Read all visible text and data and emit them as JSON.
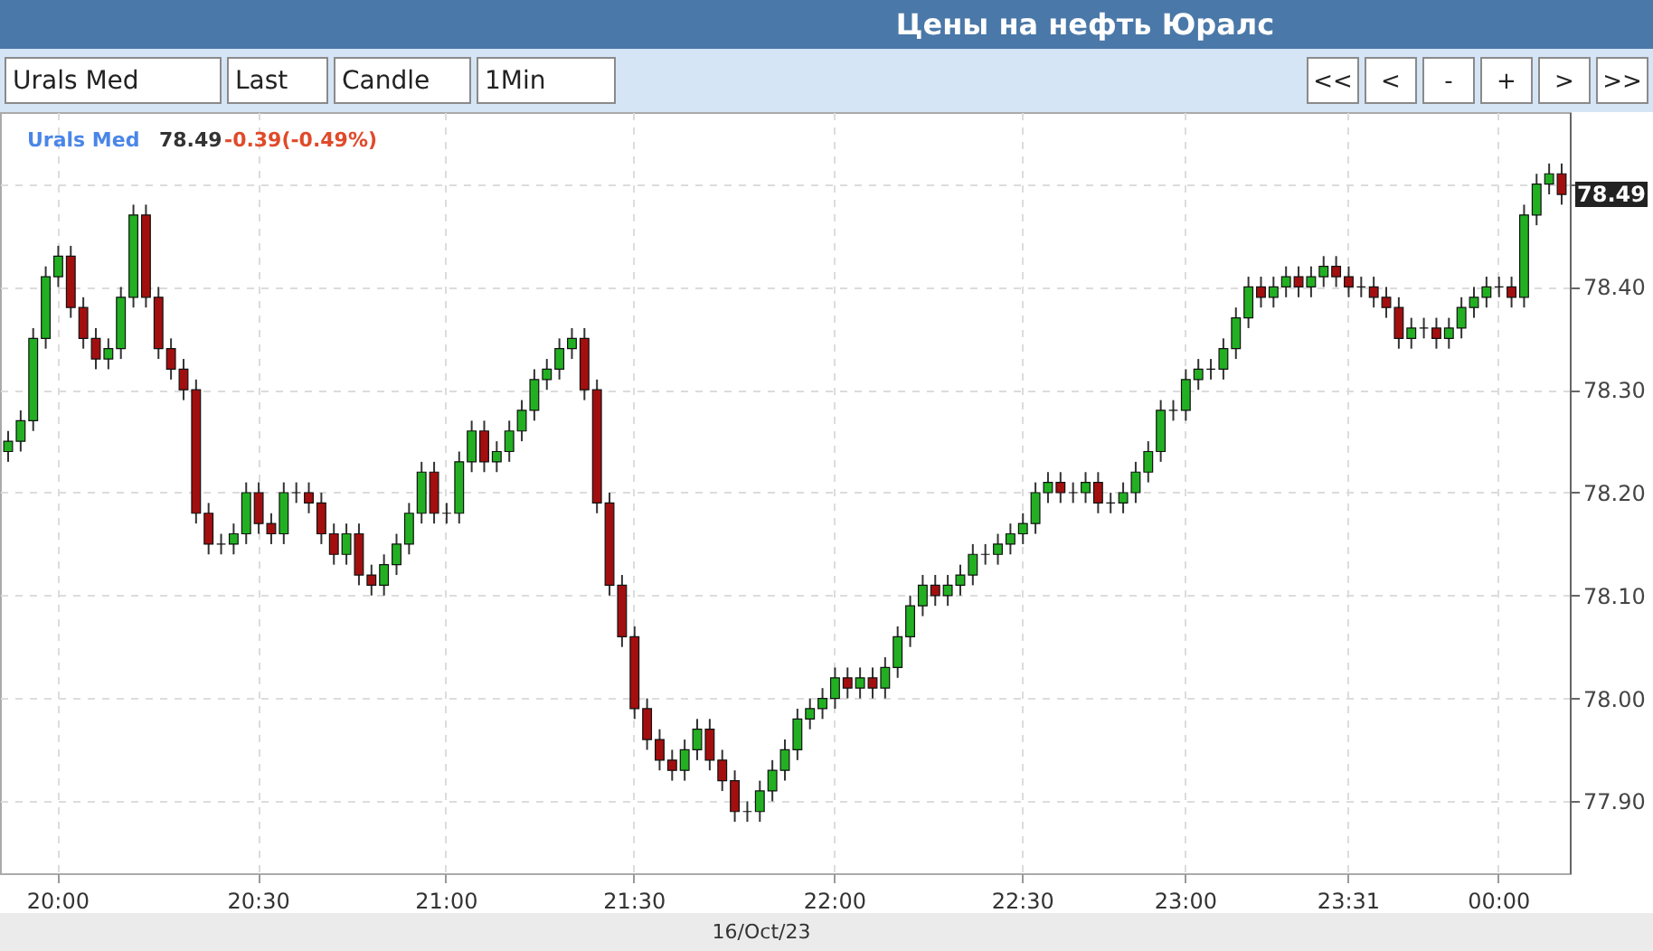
{
  "chart_data": {
    "type": "candlestick",
    "title": "Цены на нефть Юралс",
    "categories": [
      null,
      null,
      null,
      null,
      "20:00",
      null,
      null,
      null,
      null,
      null,
      null,
      null,
      null,
      null,
      null,
      null,
      null,
      null,
      null,
      null,
      "20:30",
      null,
      null,
      null,
      null,
      null,
      null,
      null,
      null,
      null,
      null,
      null,
      null,
      null,
      null,
      "21:00",
      null,
      null,
      null,
      null,
      null,
      null,
      null,
      null,
      null,
      null,
      null,
      null,
      null,
      null,
      "21:30",
      null,
      null,
      null,
      null,
      null,
      null,
      null,
      null,
      null,
      null,
      null,
      null,
      null,
      null,
      null,
      "22:00",
      null,
      null,
      null,
      null,
      null,
      null,
      null,
      null,
      null,
      null,
      null,
      null,
      null,
      null,
      "22:30",
      null,
      null,
      null,
      null,
      null,
      null,
      null,
      null,
      null,
      null,
      null,
      null,
      "23:00",
      null,
      null,
      null,
      null,
      null,
      null,
      null,
      null,
      null,
      null,
      null,
      null,
      "23:31",
      null,
      null,
      null,
      null,
      null,
      null,
      null,
      null,
      null,
      null,
      null,
      "00:00",
      null,
      null,
      null,
      null,
      null
    ],
    "ohlc": [
      [
        78.24,
        78.26,
        78.23,
        78.25
      ],
      [
        78.25,
        78.28,
        78.24,
        78.27
      ],
      [
        78.27,
        78.36,
        78.26,
        78.35
      ],
      [
        78.35,
        78.42,
        78.34,
        78.41
      ],
      [
        78.41,
        78.44,
        78.4,
        78.43
      ],
      [
        78.43,
        78.44,
        78.37,
        78.38
      ],
      [
        78.38,
        78.39,
        78.34,
        78.35
      ],
      [
        78.35,
        78.36,
        78.32,
        78.33
      ],
      [
        78.33,
        78.35,
        78.32,
        78.34
      ],
      [
        78.34,
        78.4,
        78.33,
        78.39
      ],
      [
        78.39,
        78.48,
        78.38,
        78.47
      ],
      [
        78.47,
        78.48,
        78.38,
        78.39
      ],
      [
        78.39,
        78.4,
        78.33,
        78.34
      ],
      [
        78.34,
        78.35,
        78.31,
        78.32
      ],
      [
        78.32,
        78.33,
        78.29,
        78.3
      ],
      [
        78.3,
        78.31,
        78.17,
        78.18
      ],
      [
        78.18,
        78.19,
        78.14,
        78.15
      ],
      [
        78.15,
        78.16,
        78.14,
        78.15
      ],
      [
        78.15,
        78.17,
        78.14,
        78.16
      ],
      [
        78.16,
        78.21,
        78.15,
        78.2
      ],
      [
        78.2,
        78.21,
        78.16,
        78.17
      ],
      [
        78.17,
        78.18,
        78.15,
        78.16
      ],
      [
        78.16,
        78.21,
        78.15,
        78.2
      ],
      [
        78.2,
        78.21,
        78.19,
        78.2
      ],
      [
        78.2,
        78.21,
        78.18,
        78.19
      ],
      [
        78.19,
        78.2,
        78.15,
        78.16
      ],
      [
        78.16,
        78.17,
        78.13,
        78.14
      ],
      [
        78.14,
        78.17,
        78.13,
        78.16
      ],
      [
        78.16,
        78.17,
        78.11,
        78.12
      ],
      [
        78.12,
        78.13,
        78.1,
        78.11
      ],
      [
        78.11,
        78.14,
        78.1,
        78.13
      ],
      [
        78.13,
        78.16,
        78.12,
        78.15
      ],
      [
        78.15,
        78.19,
        78.14,
        78.18
      ],
      [
        78.18,
        78.23,
        78.17,
        78.22
      ],
      [
        78.22,
        78.23,
        78.17,
        78.18
      ],
      [
        78.18,
        78.19,
        78.17,
        78.18
      ],
      [
        78.18,
        78.24,
        78.17,
        78.23
      ],
      [
        78.23,
        78.27,
        78.22,
        78.26
      ],
      [
        78.26,
        78.27,
        78.22,
        78.23
      ],
      [
        78.23,
        78.25,
        78.22,
        78.24
      ],
      [
        78.24,
        78.27,
        78.23,
        78.26
      ],
      [
        78.26,
        78.29,
        78.25,
        78.28
      ],
      [
        78.28,
        78.32,
        78.27,
        78.31
      ],
      [
        78.31,
        78.33,
        78.3,
        78.32
      ],
      [
        78.32,
        78.35,
        78.31,
        78.34
      ],
      [
        78.34,
        78.36,
        78.33,
        78.35
      ],
      [
        78.35,
        78.36,
        78.29,
        78.3
      ],
      [
        78.3,
        78.31,
        78.18,
        78.19
      ],
      [
        78.19,
        78.2,
        78.1,
        78.11
      ],
      [
        78.11,
        78.12,
        78.05,
        78.06
      ],
      [
        78.06,
        78.07,
        77.98,
        77.99
      ],
      [
        77.99,
        78.0,
        77.95,
        77.96
      ],
      [
        77.96,
        77.97,
        77.93,
        77.94
      ],
      [
        77.94,
        77.95,
        77.92,
        77.93
      ],
      [
        77.93,
        77.96,
        77.92,
        77.95
      ],
      [
        77.95,
        77.98,
        77.94,
        77.97
      ],
      [
        77.97,
        77.98,
        77.93,
        77.94
      ],
      [
        77.94,
        77.95,
        77.91,
        77.92
      ],
      [
        77.92,
        77.93,
        77.88,
        77.89
      ],
      [
        77.89,
        77.9,
        77.88,
        77.89
      ],
      [
        77.89,
        77.92,
        77.88,
        77.91
      ],
      [
        77.91,
        77.94,
        77.9,
        77.93
      ],
      [
        77.93,
        77.96,
        77.92,
        77.95
      ],
      [
        77.95,
        77.99,
        77.94,
        77.98
      ],
      [
        77.98,
        78.0,
        77.97,
        77.99
      ],
      [
        77.99,
        78.01,
        77.98,
        78.0
      ],
      [
        78.0,
        78.03,
        77.99,
        78.02
      ],
      [
        78.02,
        78.03,
        78.0,
        78.01
      ],
      [
        78.01,
        78.03,
        78.0,
        78.02
      ],
      [
        78.02,
        78.03,
        78.0,
        78.01
      ],
      [
        78.01,
        78.04,
        78.0,
        78.03
      ],
      [
        78.03,
        78.07,
        78.02,
        78.06
      ],
      [
        78.06,
        78.1,
        78.05,
        78.09
      ],
      [
        78.09,
        78.12,
        78.08,
        78.11
      ],
      [
        78.11,
        78.12,
        78.09,
        78.1
      ],
      [
        78.1,
        78.12,
        78.09,
        78.11
      ],
      [
        78.11,
        78.13,
        78.1,
        78.12
      ],
      [
        78.12,
        78.15,
        78.11,
        78.14
      ],
      [
        78.14,
        78.15,
        78.13,
        78.14
      ],
      [
        78.14,
        78.16,
        78.13,
        78.15
      ],
      [
        78.15,
        78.17,
        78.14,
        78.16
      ],
      [
        78.16,
        78.18,
        78.15,
        78.17
      ],
      [
        78.17,
        78.21,
        78.16,
        78.2
      ],
      [
        78.2,
        78.22,
        78.19,
        78.21
      ],
      [
        78.21,
        78.22,
        78.19,
        78.2
      ],
      [
        78.2,
        78.21,
        78.19,
        78.2
      ],
      [
        78.2,
        78.22,
        78.19,
        78.21
      ],
      [
        78.21,
        78.22,
        78.18,
        78.19
      ],
      [
        78.19,
        78.2,
        78.18,
        78.19
      ],
      [
        78.19,
        78.21,
        78.18,
        78.2
      ],
      [
        78.2,
        78.23,
        78.19,
        78.22
      ],
      [
        78.22,
        78.25,
        78.21,
        78.24
      ],
      [
        78.24,
        78.29,
        78.23,
        78.28
      ],
      [
        78.28,
        78.29,
        78.27,
        78.28
      ],
      [
        78.28,
        78.32,
        78.27,
        78.31
      ],
      [
        78.31,
        78.33,
        78.3,
        78.32
      ],
      [
        78.32,
        78.33,
        78.31,
        78.32
      ],
      [
        78.32,
        78.35,
        78.31,
        78.34
      ],
      [
        78.34,
        78.38,
        78.33,
        78.37
      ],
      [
        78.37,
        78.41,
        78.36,
        78.4
      ],
      [
        78.4,
        78.41,
        78.38,
        78.39
      ],
      [
        78.39,
        78.41,
        78.38,
        78.4
      ],
      [
        78.4,
        78.42,
        78.39,
        78.41
      ],
      [
        78.41,
        78.42,
        78.39,
        78.4
      ],
      [
        78.4,
        78.42,
        78.39,
        78.41
      ],
      [
        78.41,
        78.43,
        78.4,
        78.42
      ],
      [
        78.42,
        78.43,
        78.4,
        78.41
      ],
      [
        78.41,
        78.42,
        78.39,
        78.4
      ],
      [
        78.4,
        78.41,
        78.39,
        78.4
      ],
      [
        78.4,
        78.41,
        78.38,
        78.39
      ],
      [
        78.39,
        78.4,
        78.37,
        78.38
      ],
      [
        78.38,
        78.39,
        78.34,
        78.35
      ],
      [
        78.35,
        78.37,
        78.34,
        78.36
      ],
      [
        78.36,
        78.37,
        78.35,
        78.36
      ],
      [
        78.36,
        78.37,
        78.34,
        78.35
      ],
      [
        78.35,
        78.37,
        78.34,
        78.36
      ],
      [
        78.36,
        78.39,
        78.35,
        78.38
      ],
      [
        78.38,
        78.4,
        78.37,
        78.39
      ],
      [
        78.39,
        78.41,
        78.38,
        78.4
      ],
      [
        78.4,
        78.41,
        78.39,
        78.4
      ],
      [
        78.4,
        78.41,
        78.38,
        78.39
      ],
      [
        78.39,
        78.48,
        78.38,
        78.47
      ],
      [
        78.47,
        78.51,
        78.46,
        78.5
      ],
      [
        78.5,
        78.52,
        78.49,
        78.51
      ],
      [
        78.51,
        78.52,
        78.48,
        78.49
      ]
    ],
    "ylim": [
      77.83,
      78.57
    ],
    "yticks": [
      {
        "value": 77.9,
        "label": "77.90"
      },
      {
        "value": 78.0,
        "label": "78.00"
      },
      {
        "value": 78.1,
        "label": "78.10"
      },
      {
        "value": 78.2,
        "label": "78.20"
      },
      {
        "value": 78.3,
        "label": "78.30"
      },
      {
        "value": 78.4,
        "label": "78.40"
      },
      {
        "value": 78.5,
        "label": null
      }
    ],
    "grid": true,
    "annotations": [
      "Urals Med",
      "78.49",
      "-0.39(-0.49%)",
      "16/Oct/23",
      "Urals Med",
      "Last",
      "Candle",
      "1Min",
      "<<",
      "<",
      "-",
      "+",
      ">",
      ">>",
      {
        "text": "78.49",
        "y": 78.49
      }
    ]
  }
}
